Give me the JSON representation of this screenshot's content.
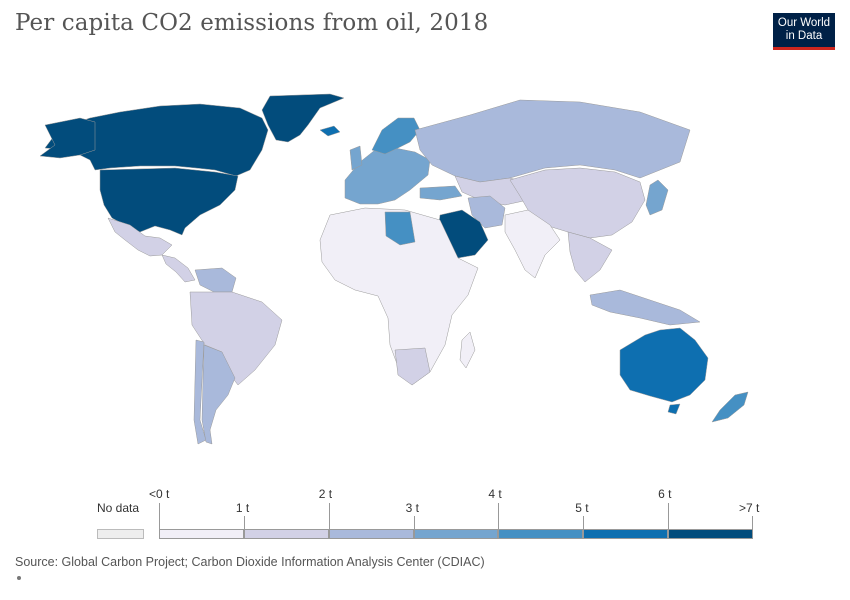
{
  "title": "Per capita CO2 emissions from oil, 2018",
  "logo": {
    "line1": "Our World",
    "line2": "in Data"
  },
  "legend": {
    "no_data_label": "No data",
    "no_data_color": "#eeeeee",
    "bins": [
      {
        "color": "#f1eff7"
      },
      {
        "color": "#d2d1e6"
      },
      {
        "color": "#a9b9db"
      },
      {
        "color": "#75a5cf"
      },
      {
        "color": "#4590c3"
      },
      {
        "color": "#0e6fb0"
      },
      {
        "color": "#024c7c"
      }
    ],
    "upper_ticks": [
      "<0 t",
      "2 t",
      "4 t",
      "6 t"
    ],
    "lower_ticks": [
      "1 t",
      "3 t",
      "5 t",
      ">7 t"
    ]
  },
  "source": "Source: Global Carbon Project; Carbon Dioxide Information Analysis Center (CDIAC)",
  "map_regions": [
    {
      "name": "Canada",
      "bin": 6
    },
    {
      "name": "United States",
      "bin": 6
    },
    {
      "name": "Greenland",
      "bin": 6
    },
    {
      "name": "Saudi Arabia",
      "bin": 6
    },
    {
      "name": "Australia",
      "bin": 5
    },
    {
      "name": "Libya",
      "bin": 4
    },
    {
      "name": "New Zealand",
      "bin": 4
    },
    {
      "name": "Norway",
      "bin": 4
    },
    {
      "name": "Iceland",
      "bin": 5
    },
    {
      "name": "Russia",
      "bin": 2
    },
    {
      "name": "China",
      "bin": 1
    },
    {
      "name": "Japan",
      "bin": 3
    },
    {
      "name": "Western Europe",
      "bin": 3
    },
    {
      "name": "Mexico",
      "bin": 1
    },
    {
      "name": "Brazil",
      "bin": 1
    },
    {
      "name": "Argentina",
      "bin": 2
    },
    {
      "name": "Chile",
      "bin": 2
    },
    {
      "name": "Venezuela",
      "bin": 2
    },
    {
      "name": "Africa",
      "bin": 0
    },
    {
      "name": "South Africa",
      "bin": 1
    },
    {
      "name": "India",
      "bin": 0
    },
    {
      "name": "Iran",
      "bin": 2
    },
    {
      "name": "Kazakhstan",
      "bin": 1
    },
    {
      "name": "Southeast Asia",
      "bin": 1
    },
    {
      "name": "Malaysia",
      "bin": 2
    }
  ]
}
